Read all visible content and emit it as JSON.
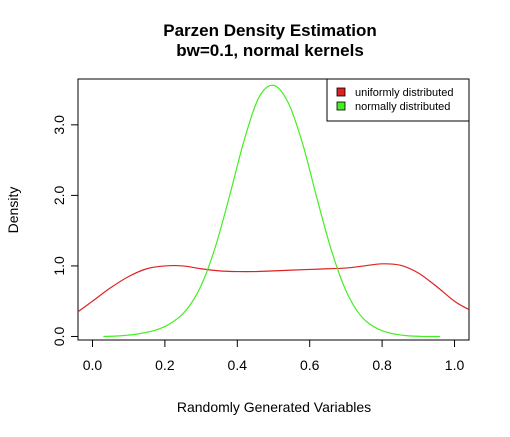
{
  "chart_data": {
    "type": "line",
    "title": "Parzen Density Estimation",
    "subtitle": "bw=0.1, normal kernels",
    "xlabel": "Randomly Generated Variables",
    "ylabel": "Density",
    "xlim": [
      -0.04,
      1.04
    ],
    "ylim": [
      -0.05,
      3.65
    ],
    "x_ticks": [
      0.0,
      0.2,
      0.4,
      0.6,
      0.8,
      1.0
    ],
    "x_tick_labels": [
      "0.0",
      "0.2",
      "0.4",
      "0.6",
      "0.8",
      "1.0"
    ],
    "y_ticks": [
      0.0,
      1.0,
      2.0,
      3.0
    ],
    "y_tick_labels": [
      "0.0",
      "1.0",
      "2.0",
      "3.0"
    ],
    "grid": false,
    "legend_position": "top-right",
    "series": [
      {
        "name": "uniformly distributed",
        "color": "#dd2222",
        "x": [
          -0.04,
          0.0,
          0.05,
          0.1,
          0.15,
          0.2,
          0.25,
          0.3,
          0.35,
          0.4,
          0.45,
          0.5,
          0.55,
          0.6,
          0.65,
          0.7,
          0.75,
          0.8,
          0.85,
          0.9,
          0.95,
          1.0,
          1.04
        ],
        "values": [
          0.35,
          0.5,
          0.69,
          0.85,
          0.96,
          1.0,
          1.0,
          0.96,
          0.93,
          0.92,
          0.92,
          0.93,
          0.94,
          0.95,
          0.96,
          0.97,
          1.0,
          1.03,
          1.01,
          0.9,
          0.71,
          0.5,
          0.38
        ]
      },
      {
        "name": "normally distributed",
        "color": "#44ee22",
        "x": [
          0.03,
          0.08,
          0.13,
          0.18,
          0.22,
          0.26,
          0.3,
          0.34,
          0.38,
          0.42,
          0.46,
          0.5,
          0.54,
          0.58,
          0.62,
          0.66,
          0.7,
          0.74,
          0.78,
          0.82,
          0.87,
          0.92,
          0.96
        ],
        "values": [
          0.0,
          0.01,
          0.04,
          0.1,
          0.2,
          0.38,
          0.72,
          1.28,
          2.02,
          2.8,
          3.39,
          3.56,
          3.32,
          2.74,
          1.96,
          1.22,
          0.65,
          0.3,
          0.13,
          0.05,
          0.01,
          0.0,
          0.0
        ]
      }
    ]
  }
}
